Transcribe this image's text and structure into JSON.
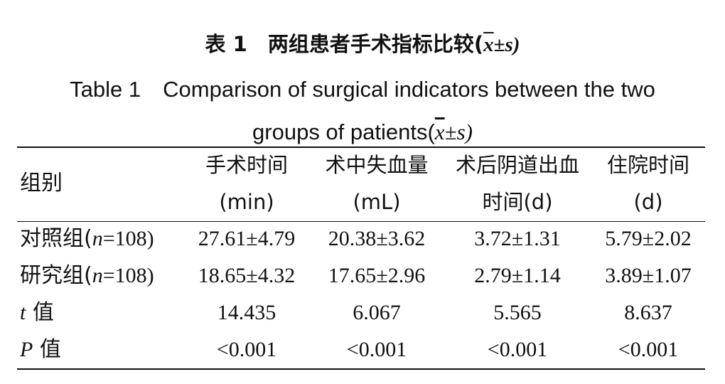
{
  "title": {
    "cn_prefix": "表 1　两组患者手术指标比较(",
    "cn_xbar": "x",
    "cn_suffix": "±s)",
    "en_line1": "Table 1　Comparison of surgical indicators between the two",
    "en_line2_prefix": "groups of patients(",
    "en_xbar": "x",
    "en_suffix": "±s)"
  },
  "table": {
    "group_header": "组别",
    "columns": [
      {
        "line1": "手术时间",
        "line2": "(min)"
      },
      {
        "line1": "术中失血量",
        "line2": "(mL)"
      },
      {
        "line1": "术后阴道出血",
        "line2": "时间(d)"
      },
      {
        "line1": "住院时间",
        "line2": "(d)"
      }
    ],
    "rows": [
      {
        "label_prefix": "对照组(",
        "label_n": "n",
        "label_suffix": "=108)",
        "values": [
          "27.61±4.79",
          "20.38±3.62",
          "3.72±1.31",
          "5.79±2.02"
        ]
      },
      {
        "label_prefix": "研究组(",
        "label_n": "n",
        "label_suffix": "=108)",
        "values": [
          "18.65±4.32",
          "17.65±2.96",
          "2.79±1.14",
          "3.89±1.07"
        ]
      },
      {
        "label_stat": "t",
        "label_suffix": " 值",
        "values": [
          "14.435",
          "6.067",
          "5.565",
          "8.637"
        ]
      },
      {
        "label_stat": "P",
        "label_suffix": " 值",
        "values": [
          "<0.001",
          "<0.001",
          "<0.001",
          "<0.001"
        ]
      }
    ]
  }
}
